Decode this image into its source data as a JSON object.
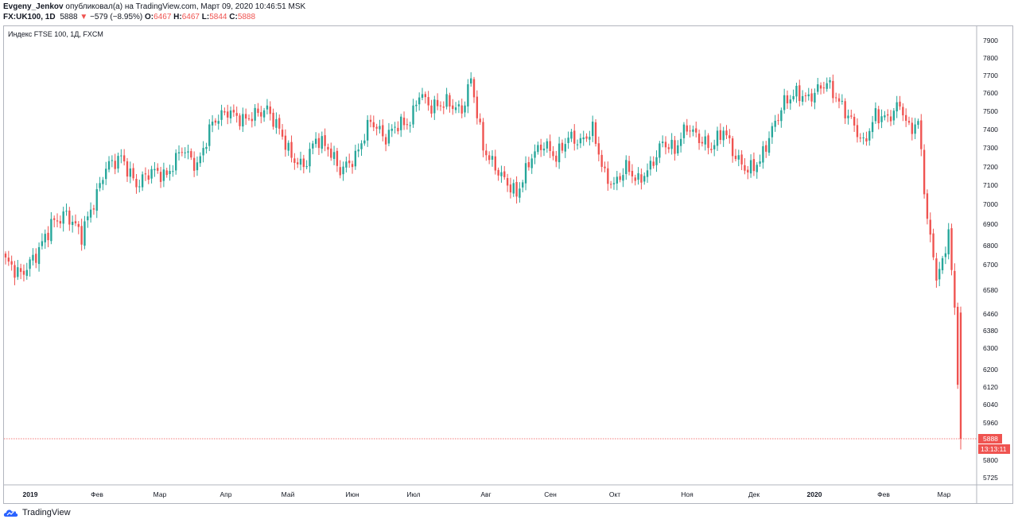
{
  "header": {
    "author": "Evgeny_Jenkov",
    "published": "опубликовал(а) на TradingView.com, Март 09, 2020 10:46:51 MSK",
    "symbol": "FX:UK100, 1D",
    "last": "5888",
    "change": "−579 (−8.95%)",
    "o_label": "O:",
    "o_value": "6467",
    "h_label": "H:",
    "h_value": "6467",
    "l_label": "L:",
    "l_value": "5844",
    "c_label": "C:",
    "c_value": "5888"
  },
  "footer": {
    "brand": "TradingView"
  },
  "chart_data": {
    "type": "candlestick",
    "title": "Индекс FTSE 100, 1Д, FXCM",
    "y_ticks": [
      5725,
      5800,
      5888,
      5960,
      6040,
      6120,
      6200,
      6300,
      6380,
      6460,
      6580,
      6700,
      6800,
      6900,
      7000,
      7100,
      7200,
      7300,
      7400,
      7500,
      7600,
      7700,
      7800,
      7900
    ],
    "y_tick_labels": [
      "5725",
      "5800",
      "5960",
      "6040",
      "6120",
      "6200",
      "6300",
      "6380",
      "6460",
      "6580",
      "6700",
      "6800",
      "6900",
      "7000",
      "7100",
      "7200",
      "7300",
      "7400",
      "7500",
      "7600",
      "7700",
      "7800",
      "7900"
    ],
    "x_labels": [
      "2019",
      "Фев",
      "Мар",
      "Апр",
      "Май",
      "Июн",
      "Июл",
      "Авг",
      "Сен",
      "Окт",
      "Ноя",
      "Дек",
      "2020",
      "Фев",
      "Мар"
    ],
    "bold_x_labels": [
      "2019",
      "2020"
    ],
    "last_price_label": "5888",
    "countdown_label": "13:13:11",
    "colors": {
      "up": "#26a69a",
      "down": "#ef5350"
    },
    "waypoints": [
      [
        0,
        6720
      ],
      [
        5,
        6650
      ],
      [
        10,
        6750
      ],
      [
        15,
        6900
      ],
      [
        20,
        6950
      ],
      [
        25,
        6850
      ],
      [
        30,
        7050
      ],
      [
        33,
        7200
      ],
      [
        38,
        7250
      ],
      [
        43,
        7100
      ],
      [
        48,
        7180
      ],
      [
        53,
        7150
      ],
      [
        58,
        7300
      ],
      [
        63,
        7200
      ],
      [
        68,
        7440
      ],
      [
        73,
        7500
      ],
      [
        78,
        7450
      ],
      [
        83,
        7490
      ],
      [
        86,
        7510
      ],
      [
        90,
        7400
      ],
      [
        94,
        7250
      ],
      [
        98,
        7200
      ],
      [
        102,
        7350
      ],
      [
        106,
        7300
      ],
      [
        110,
        7180
      ],
      [
        115,
        7250
      ],
      [
        120,
        7450
      ],
      [
        125,
        7350
      ],
      [
        128,
        7420
      ],
      [
        133,
        7440
      ],
      [
        136,
        7600
      ],
      [
        140,
        7520
      ],
      [
        145,
        7550
      ],
      [
        150,
        7500
      ],
      [
        153,
        7680
      ],
      [
        157,
        7300
      ],
      [
        160,
        7220
      ],
      [
        164,
        7130
      ],
      [
        168,
        7050
      ],
      [
        173,
        7260
      ],
      [
        177,
        7320
      ],
      [
        181,
        7250
      ],
      [
        185,
        7360
      ],
      [
        189,
        7330
      ],
      [
        193,
        7400
      ],
      [
        197,
        7150
      ],
      [
        200,
        7100
      ],
      [
        204,
        7200
      ],
      [
        208,
        7120
      ],
      [
        212,
        7200
      ],
      [
        216,
        7330
      ],
      [
        220,
        7290
      ],
      [
        224,
        7420
      ],
      [
        228,
        7350
      ],
      [
        232,
        7300
      ],
      [
        236,
        7400
      ],
      [
        240,
        7250
      ],
      [
        244,
        7180
      ],
      [
        248,
        7230
      ],
      [
        252,
        7400
      ],
      [
        256,
        7550
      ],
      [
        260,
        7600
      ],
      [
        264,
        7570
      ],
      [
        267,
        7620
      ],
      [
        270,
        7660
      ],
      [
        274,
        7550
      ],
      [
        278,
        7450
      ],
      [
        282,
        7320
      ],
      [
        286,
        7480
      ],
      [
        290,
        7460
      ],
      [
        294,
        7540
      ],
      [
        297,
        7400
      ],
      [
        300,
        7440
      ],
      [
        303,
        6920
      ],
      [
        306,
        6650
      ],
      [
        308,
        6700
      ],
      [
        310,
        6880
      ],
      [
        312,
        6460
      ],
      [
        314,
        5888
      ]
    ]
  }
}
